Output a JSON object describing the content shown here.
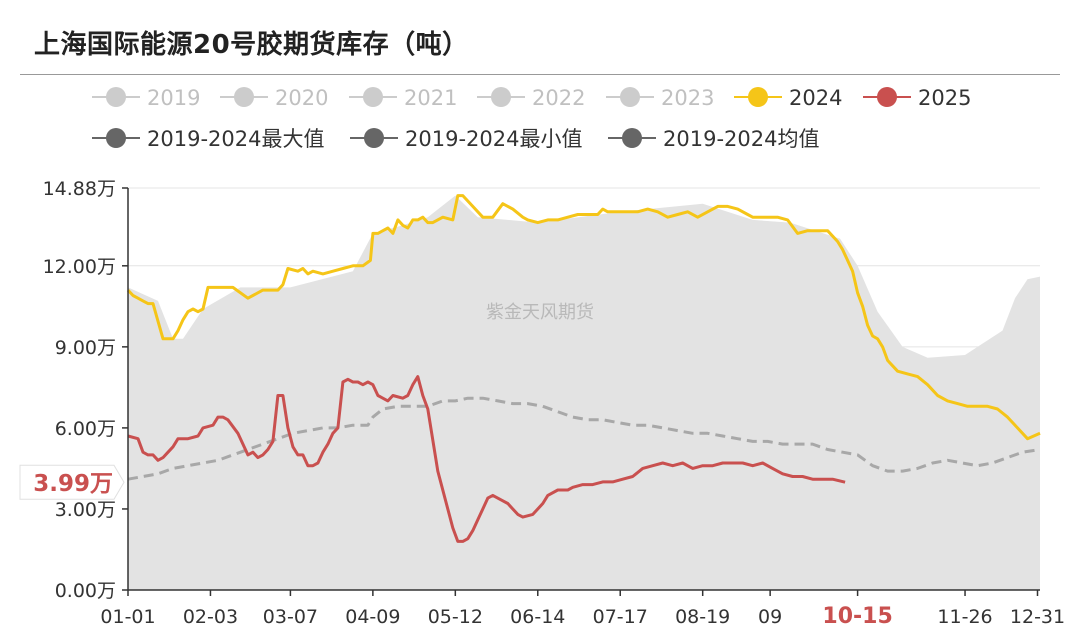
{
  "header": {
    "title": "上海国际能源20号胶期货库存（吨）"
  },
  "watermark": "紫金天风期货",
  "colors": {
    "band": "#e3e3e3",
    "grid": "#e4e4e4",
    "axis": "#333333",
    "y2024": "#f5c518",
    "y2025": "#c9504f",
    "mean": "#a8a8a8",
    "legend_off": "#cccccc",
    "legend_dark": "#666666"
  },
  "chart_data": {
    "type": "line",
    "title": "上海国际能源20号胶期货库存（吨）",
    "unit": "万",
    "ylim": [
      0,
      14.88
    ],
    "yticks": [
      "14.88万",
      "12.00万",
      "9.00万",
      "6.00万",
      "3.00万",
      "0.00万"
    ],
    "ytick_values": [
      14.88,
      12,
      9,
      6,
      3,
      0
    ],
    "xticks": [
      "01-01",
      "02-03",
      "03-07",
      "04-09",
      "05-12",
      "06-14",
      "07-17",
      "08-19",
      "09",
      "10-15",
      "11-26",
      "12-31"
    ],
    "xtick_days": [
      0,
      33,
      65,
      98,
      131,
      164,
      197,
      230,
      257,
      292,
      335,
      364
    ],
    "xlim_days": [
      0,
      365
    ],
    "current_marker": {
      "label": "10-15",
      "day": 287
    },
    "current_value_label": "3.99万",
    "current_value": 3.99,
    "grid": true,
    "legend": [
      {
        "name": "2019",
        "color": "#cccccc",
        "text_color": "#c0c0c0"
      },
      {
        "name": "2020",
        "color": "#cccccc",
        "text_color": "#c0c0c0"
      },
      {
        "name": "2021",
        "color": "#cccccc",
        "text_color": "#c0c0c0"
      },
      {
        "name": "2022",
        "color": "#cccccc",
        "text_color": "#c0c0c0"
      },
      {
        "name": "2023",
        "color": "#cccccc",
        "text_color": "#c0c0c0"
      },
      {
        "name": "2024",
        "color": "#f5c518",
        "text_color": "#333333"
      },
      {
        "name": "2025",
        "color": "#c9504f",
        "text_color": "#333333"
      },
      {
        "name": "2019-2024最大值",
        "color": "#666666",
        "text_color": "#333333"
      },
      {
        "name": "2019-2024最小值",
        "color": "#666666",
        "text_color": "#333333"
      },
      {
        "name": "2019-2024均值",
        "color": "#666666",
        "text_color": "#333333"
      }
    ],
    "series": [
      {
        "name": "2019-2024最大值",
        "days": [
          0,
          12,
          18,
          22,
          30,
          45,
          65,
          90,
          98,
          110,
          120,
          131,
          140,
          164,
          197,
          230,
          250,
          265,
          285,
          292,
          300,
          310,
          320,
          335,
          350,
          355,
          360,
          365
        ],
        "values": [
          11.2,
          10.7,
          9.3,
          9.3,
          10.4,
          11.2,
          11.2,
          11.8,
          13.2,
          13.5,
          13.8,
          14.6,
          13.8,
          13.6,
          14.0,
          14.3,
          13.7,
          13.6,
          13.0,
          12.0,
          10.3,
          9.0,
          8.6,
          8.7,
          9.6,
          10.8,
          11.5,
          11.6
        ]
      },
      {
        "name": "2019-2024最小值",
        "days": [
          0,
          365
        ],
        "values": [
          0,
          0
        ]
      },
      {
        "name": "2024",
        "days": [
          0,
          2,
          4,
          6,
          8,
          10,
          14,
          16,
          18,
          20,
          22,
          24,
          26,
          28,
          30,
          32,
          34,
          36,
          38,
          40,
          42,
          48,
          54,
          56,
          58,
          60,
          62,
          64,
          68,
          70,
          72,
          74,
          78,
          82,
          86,
          90,
          94,
          97,
          98,
          100,
          102,
          104,
          106,
          108,
          110,
          112,
          114,
          116,
          118,
          120,
          122,
          126,
          130,
          132,
          134,
          136,
          138,
          142,
          146,
          150,
          154,
          158,
          160,
          164,
          168,
          172,
          176,
          180,
          184,
          188,
          190,
          192,
          196,
          200,
          204,
          208,
          212,
          216,
          220,
          224,
          228,
          232,
          236,
          240,
          244,
          248,
          250,
          252,
          256,
          260,
          264,
          268,
          272,
          276,
          280,
          284,
          286,
          288,
          290,
          292,
          294,
          296,
          298,
          300,
          302,
          304,
          306,
          308,
          312,
          316,
          320,
          324,
          328,
          332,
          336,
          340,
          344,
          348,
          352,
          356,
          360,
          365
        ],
        "values": [
          11.1,
          10.9,
          10.8,
          10.7,
          10.6,
          10.6,
          9.3,
          9.3,
          9.3,
          9.6,
          10.0,
          10.3,
          10.4,
          10.3,
          10.4,
          11.2,
          11.2,
          11.2,
          11.2,
          11.2,
          11.2,
          10.8,
          11.1,
          11.1,
          11.1,
          11.1,
          11.3,
          11.9,
          11.8,
          11.9,
          11.7,
          11.8,
          11.7,
          11.8,
          11.9,
          12.0,
          12.0,
          12.2,
          13.2,
          13.2,
          13.3,
          13.4,
          13.2,
          13.7,
          13.5,
          13.4,
          13.7,
          13.7,
          13.8,
          13.6,
          13.6,
          13.8,
          13.7,
          14.6,
          14.6,
          14.4,
          14.2,
          13.8,
          13.8,
          14.3,
          14.1,
          13.8,
          13.7,
          13.6,
          13.7,
          13.7,
          13.8,
          13.9,
          13.9,
          13.9,
          14.1,
          14.0,
          14.0,
          14.0,
          14.0,
          14.1,
          14.0,
          13.8,
          13.9,
          14.0,
          13.8,
          14.0,
          14.2,
          14.2,
          14.1,
          13.9,
          13.8,
          13.8,
          13.8,
          13.8,
          13.7,
          13.2,
          13.3,
          13.3,
          13.3,
          12.9,
          12.6,
          12.2,
          11.8,
          11.0,
          10.5,
          9.8,
          9.4,
          9.3,
          9.0,
          8.5,
          8.3,
          8.1,
          8.0,
          7.9,
          7.6,
          7.2,
          7.0,
          6.9,
          6.8,
          6.8,
          6.8,
          6.7,
          6.4,
          6.0,
          5.6,
          5.8
        ]
      },
      {
        "name": "2025",
        "days": [
          0,
          4,
          6,
          8,
          10,
          12,
          14,
          16,
          18,
          20,
          24,
          28,
          30,
          34,
          36,
          38,
          40,
          44,
          48,
          50,
          52,
          54,
          56,
          58,
          60,
          62,
          64,
          66,
          68,
          70,
          72,
          74,
          76,
          78,
          80,
          82,
          84,
          86,
          88,
          90,
          92,
          94,
          96,
          98,
          100,
          104,
          106,
          110,
          112,
          114,
          116,
          118,
          120,
          124,
          128,
          130,
          132,
          134,
          136,
          138,
          140,
          142,
          144,
          146,
          150,
          152,
          154,
          156,
          158,
          162,
          166,
          168,
          172,
          176,
          178,
          182,
          186,
          190,
          194,
          198,
          202,
          206,
          210,
          214,
          218,
          222,
          226,
          230,
          234,
          238,
          242,
          246,
          250,
          254,
          258,
          262,
          266,
          270,
          274,
          278,
          282,
          287
        ],
        "values": [
          5.7,
          5.6,
          5.1,
          5.0,
          5.0,
          4.8,
          4.9,
          5.1,
          5.3,
          5.6,
          5.6,
          5.7,
          6.0,
          6.1,
          6.4,
          6.4,
          6.3,
          5.8,
          5.0,
          5.1,
          4.9,
          5.0,
          5.2,
          5.5,
          7.2,
          7.2,
          6.0,
          5.3,
          5.0,
          5.0,
          4.6,
          4.6,
          4.7,
          5.1,
          5.4,
          5.8,
          6.0,
          7.7,
          7.8,
          7.7,
          7.7,
          7.6,
          7.7,
          7.6,
          7.2,
          7.0,
          7.2,
          7.1,
          7.2,
          7.6,
          7.9,
          7.2,
          6.7,
          4.4,
          3.0,
          2.3,
          1.8,
          1.8,
          1.9,
          2.2,
          2.6,
          3.0,
          3.4,
          3.5,
          3.3,
          3.2,
          3.0,
          2.8,
          2.7,
          2.8,
          3.2,
          3.5,
          3.7,
          3.7,
          3.8,
          3.9,
          3.9,
          4.0,
          4.0,
          4.1,
          4.2,
          4.5,
          4.6,
          4.7,
          4.6,
          4.7,
          4.5,
          4.6,
          4.6,
          4.7,
          4.7,
          4.7,
          4.6,
          4.7,
          4.5,
          4.3,
          4.2,
          4.2,
          4.1,
          4.1,
          4.1,
          3.99
        ]
      },
      {
        "name": "2019-2024均值",
        "days": [
          0,
          6,
          12,
          18,
          24,
          30,
          36,
          42,
          48,
          54,
          60,
          66,
          72,
          78,
          84,
          90,
          96,
          98,
          102,
          108,
          114,
          120,
          126,
          131,
          136,
          142,
          148,
          154,
          160,
          166,
          172,
          178,
          184,
          190,
          196,
          202,
          208,
          214,
          220,
          226,
          232,
          238,
          244,
          250,
          256,
          262,
          268,
          274,
          280,
          286,
          292,
          298,
          304,
          310,
          316,
          322,
          328,
          334,
          340,
          346,
          352,
          358,
          365
        ],
        "values": [
          4.1,
          4.2,
          4.3,
          4.5,
          4.6,
          4.7,
          4.8,
          5.0,
          5.2,
          5.4,
          5.6,
          5.8,
          5.9,
          6.0,
          6.0,
          6.1,
          6.1,
          6.4,
          6.7,
          6.8,
          6.8,
          6.8,
          7.0,
          7.0,
          7.1,
          7.1,
          7.0,
          6.9,
          6.9,
          6.8,
          6.6,
          6.4,
          6.3,
          6.3,
          6.2,
          6.1,
          6.1,
          6.0,
          5.9,
          5.8,
          5.8,
          5.7,
          5.6,
          5.5,
          5.5,
          5.4,
          5.4,
          5.4,
          5.2,
          5.1,
          5.0,
          4.6,
          4.4,
          4.4,
          4.5,
          4.7,
          4.8,
          4.7,
          4.6,
          4.7,
          4.9,
          5.1,
          5.2
        ]
      }
    ]
  }
}
